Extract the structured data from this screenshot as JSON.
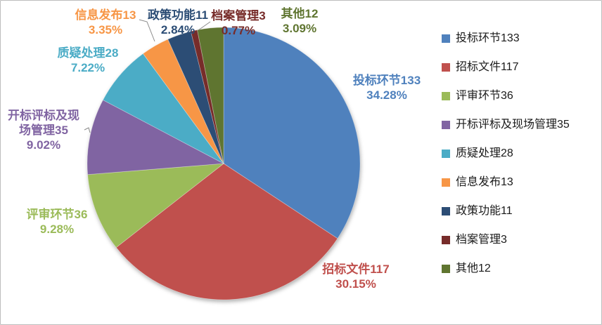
{
  "chart_data": {
    "type": "pie",
    "title": "",
    "total": 388,
    "legend_position": "right",
    "label_format": "name+value and percent, colored to match slice",
    "slices": [
      {
        "label": "投标环节133",
        "name": "投标环节",
        "value": 133,
        "pct": "34.28%",
        "color": "#4F81BD"
      },
      {
        "label": "招标文件117",
        "name": "招标文件",
        "value": 117,
        "pct": "30.15%",
        "color": "#C0504D"
      },
      {
        "label": "评审环节36",
        "name": "评审环节",
        "value": 36,
        "pct": "9.28%",
        "color": "#9BBB59"
      },
      {
        "label": "开标评标及现场管理35",
        "name": "开标评标及现场管理",
        "value": 35,
        "pct": "9.02%",
        "color": "#8064A2"
      },
      {
        "label": "质疑处理28",
        "name": "质疑处理",
        "value": 28,
        "pct": "7.22%",
        "color": "#4BACC6"
      },
      {
        "label": "信息发布13",
        "name": "信息发布",
        "value": 13,
        "pct": "3.35%",
        "color": "#F79646"
      },
      {
        "label": "政策功能11",
        "name": "政策功能",
        "value": 11,
        "pct": "2.84%",
        "color": "#2C4D75"
      },
      {
        "label": "档案管理3",
        "name": "档案管理",
        "value": 3,
        "pct": "0.77%",
        "color": "#772C2A"
      },
      {
        "label": "其他12",
        "name": "其他",
        "value": 12,
        "pct": "3.09%",
        "color": "#5F7530"
      }
    ]
  }
}
